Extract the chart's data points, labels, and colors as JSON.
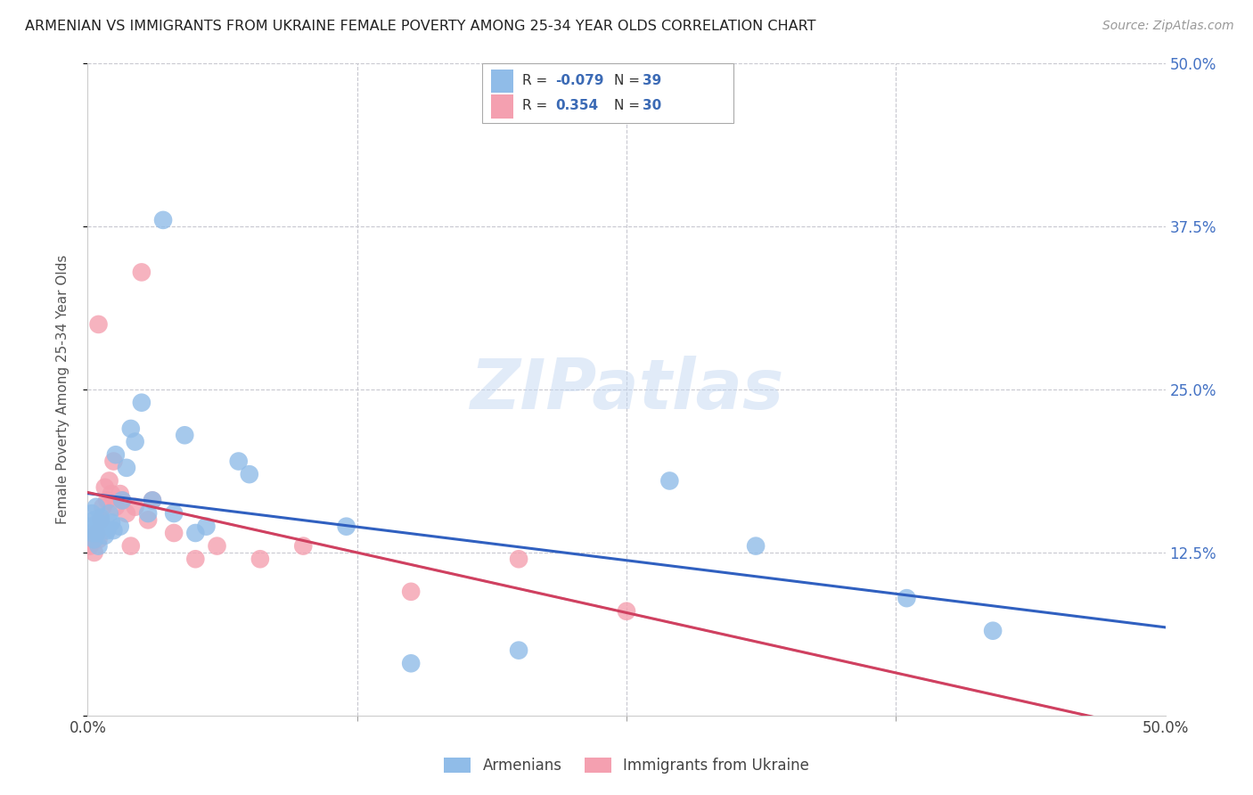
{
  "title": "ARMENIAN VS IMMIGRANTS FROM UKRAINE FEMALE POVERTY AMONG 25-34 YEAR OLDS CORRELATION CHART",
  "source": "Source: ZipAtlas.com",
  "ylabel": "Female Poverty Among 25-34 Year Olds",
  "xlim": [
    0,
    0.5
  ],
  "ylim": [
    0,
    0.5
  ],
  "background_color": "#ffffff",
  "armenian_color": "#90bce8",
  "ukraine_color": "#f4a0b0",
  "armenian_line_color": "#3060c0",
  "ukraine_line_color": "#d04060",
  "ukraine_dash_color": "#c0c0c8",
  "watermark": "ZIPatlas",
  "legend_R_arm": "-0.079",
  "legend_N_arm": "39",
  "legend_R_ukr": "0.354",
  "legend_N_ukr": "30",
  "arm_x": [
    0.001,
    0.002,
    0.002,
    0.003,
    0.003,
    0.004,
    0.004,
    0.005,
    0.005,
    0.006,
    0.007,
    0.008,
    0.009,
    0.01,
    0.011,
    0.012,
    0.013,
    0.015,
    0.016,
    0.018,
    0.02,
    0.022,
    0.025,
    0.028,
    0.03,
    0.035,
    0.04,
    0.045,
    0.05,
    0.055,
    0.07,
    0.075,
    0.12,
    0.15,
    0.2,
    0.27,
    0.31,
    0.38,
    0.42
  ],
  "arm_y": [
    0.145,
    0.14,
    0.155,
    0.135,
    0.15,
    0.14,
    0.16,
    0.13,
    0.148,
    0.152,
    0.145,
    0.138,
    0.142,
    0.155,
    0.148,
    0.142,
    0.2,
    0.145,
    0.165,
    0.19,
    0.22,
    0.21,
    0.24,
    0.155,
    0.165,
    0.38,
    0.155,
    0.215,
    0.14,
    0.145,
    0.195,
    0.185,
    0.145,
    0.04,
    0.05,
    0.18,
    0.13,
    0.09,
    0.065
  ],
  "ukr_x": [
    0.001,
    0.002,
    0.003,
    0.004,
    0.005,
    0.005,
    0.006,
    0.007,
    0.008,
    0.009,
    0.01,
    0.011,
    0.012,
    0.013,
    0.015,
    0.016,
    0.018,
    0.02,
    0.022,
    0.025,
    0.028,
    0.03,
    0.04,
    0.05,
    0.06,
    0.08,
    0.1,
    0.15,
    0.2,
    0.25
  ],
  "ukr_y": [
    0.13,
    0.135,
    0.125,
    0.14,
    0.3,
    0.135,
    0.15,
    0.16,
    0.175,
    0.165,
    0.18,
    0.17,
    0.195,
    0.16,
    0.17,
    0.165,
    0.155,
    0.13,
    0.16,
    0.34,
    0.15,
    0.165,
    0.14,
    0.12,
    0.13,
    0.12,
    0.13,
    0.095,
    0.12,
    0.08
  ]
}
